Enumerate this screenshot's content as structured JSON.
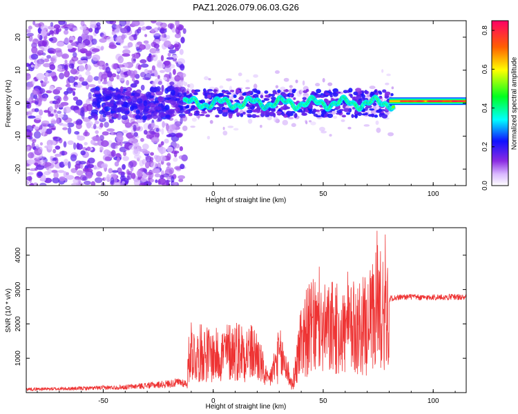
{
  "title": "PAZ1.2026.079.06.03.G26",
  "chart_data": [
    {
      "type": "heatmap",
      "xlabel": "Height of straight line (km)",
      "ylabel": "Frequency (Hz)",
      "xlim": [
        -85,
        115
      ],
      "ylim": [
        -25,
        25
      ],
      "xticks": [
        -50,
        0,
        50,
        100
      ],
      "yticks": [
        -20,
        -10,
        0,
        10,
        20
      ],
      "colorbar": {
        "label": "Normalized spectral amplitude",
        "range": [
          0,
          0.85
        ],
        "ticks": [
          0.0,
          0.2,
          0.4,
          0.6,
          0.8
        ]
      }
    },
    {
      "type": "line",
      "xlabel": "Height of straight line (km)",
      "ylabel": "SNR (10 * v/v)",
      "xlim": [
        -85,
        115
      ],
      "ylim": [
        0,
        4800
      ],
      "xticks": [
        -50,
        0,
        50,
        100
      ],
      "yticks": [
        1000,
        2000,
        3000,
        4000
      ],
      "color": "#ee3333",
      "series": [
        {
          "x": [
            -85,
            -70,
            -55,
            -40,
            -25,
            -20,
            -15,
            -12,
            -11,
            -10,
            -8,
            -5,
            -2,
            0,
            5,
            10,
            15,
            20,
            25,
            30,
            33,
            36,
            40,
            45,
            50,
            55,
            60,
            65,
            70,
            73,
            75,
            77,
            79,
            80,
            81,
            85,
            90,
            95,
            100,
            105,
            110,
            115
          ],
          "y": [
            100,
            110,
            130,
            160,
            230,
            260,
            300,
            260,
            1000,
            1300,
            1000,
            1200,
            1100,
            1050,
            1150,
            1250,
            1200,
            1100,
            300,
            1100,
            800,
            200,
            1600,
            1900,
            1800,
            1850,
            1750,
            1900,
            1950,
            2200,
            2500,
            2600,
            2300,
            2700,
            2750,
            2780,
            2790,
            2760,
            2780,
            2770,
            2790,
            2760
          ]
        }
      ]
    }
  ]
}
